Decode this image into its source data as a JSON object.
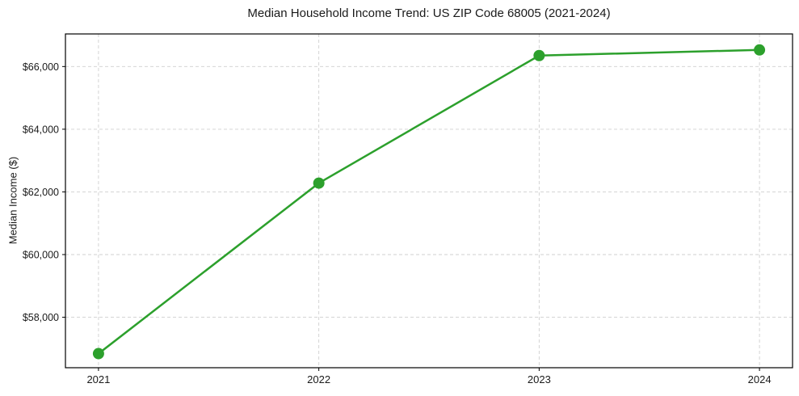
{
  "chart_data": {
    "type": "line",
    "title": "Median Household Income Trend: US ZIP Code 68005 (2021-2024)",
    "xlabel": "",
    "ylabel": "Median Income ($)",
    "x": [
      2021,
      2022,
      2023,
      2024
    ],
    "values": [
      56840,
      62280,
      66350,
      66530
    ],
    "xtick_labels": [
      "2021",
      "2022",
      "2023",
      "2024"
    ],
    "ytick_values": [
      58000,
      60000,
      62000,
      64000,
      66000
    ],
    "ytick_labels": [
      "$58,000",
      "$60,000",
      "$62,000",
      "$64,000",
      "$66,000"
    ],
    "xlim": [
      2020.85,
      2024.15
    ],
    "ylim": [
      56390,
      67040
    ],
    "grid": true,
    "grid_style": "dashed",
    "legend_position": "none",
    "marker": "circle",
    "colors": {
      "line": "#2ca02c",
      "marker": "#2ca02c",
      "grid": "#cfcfcf",
      "axis": "#000000",
      "tick_text": "#1a1a1a",
      "background": "#ffffff"
    }
  }
}
